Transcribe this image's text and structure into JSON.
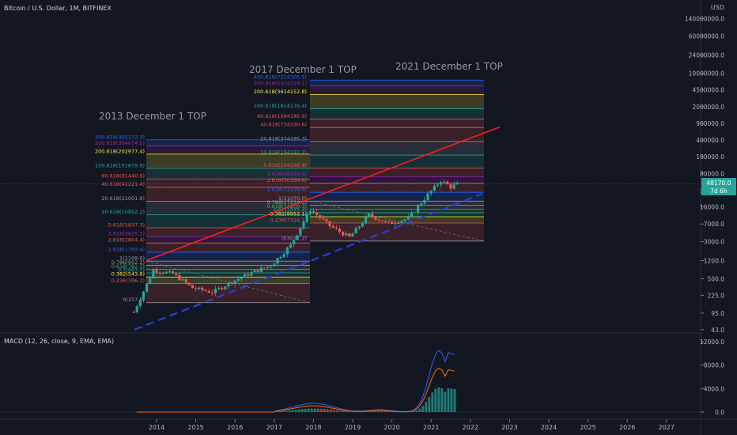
{
  "header": {
    "symbol_title": "Bitcoin / U.S. Dollar, 1M, BITFINEX"
  },
  "annotations": {
    "top_2013": "2013 December 1 TOP",
    "top_2017": "2017 December 1 TOP",
    "top_2021": "2021 December 1 TOP"
  },
  "price_scale": {
    "unit": "USD",
    "ticks": [
      "140000000.0",
      "60000000.0",
      "24000000.0",
      "10000000.0",
      "4500000.0",
      "2000000.0",
      "900000.0",
      "400000.0",
      "180000.0",
      "80000.0",
      "35000.0",
      "16000.0",
      "7000.0",
      "3000.0",
      "1200.0",
      "500.0",
      "225.0",
      "95.0",
      "43.0"
    ],
    "last_price_label": "48170.0",
    "last_price_countdown": "7d 6h"
  },
  "time_axis": {
    "labels": [
      "2014",
      "2015",
      "2016",
      "2017",
      "2018",
      "2019",
      "2020",
      "2021",
      "2022",
      "2023",
      "2024",
      "2025",
      "2026",
      "2027"
    ]
  },
  "fib_2013": {
    "levels": [
      {
        "label": "400.618(405172.3)",
        "color": "#2962ff"
      },
      {
        "label": "300.618(304074.5)",
        "color": "#9c27b0"
      },
      {
        "label": "200.618(202977.4)",
        "color": "#ffeb3b"
      },
      {
        "label": "100.618(101879.9)",
        "color": "#26a69a"
      },
      {
        "label": "60.618(61440.9)",
        "color": "#ef5350"
      },
      {
        "label": "40.618(41221.4)",
        "color": "#ef5350"
      },
      {
        "label": "20.618(21001.9)",
        "color": "#9598a1"
      },
      {
        "label": "10.618(10892.2)",
        "color": "#26a69a"
      },
      {
        "label": "5.618(5837.3)",
        "color": "#ef5350"
      },
      {
        "label": "3.618(3815.3)",
        "color": "#9c27b0"
      },
      {
        "label": "2.618(2804.4)",
        "color": "#ef5350"
      },
      {
        "label": "1.618(1793.4)",
        "color": "#2962ff"
      },
      {
        "label": "1(1168.6)",
        "color": "#9598a1"
      },
      {
        "label": "0.786(952.2)",
        "color": "#9598a1"
      },
      {
        "label": "0.618(782.3)",
        "color": "#4caf50"
      },
      {
        "label": "0.5(663.0)",
        "color": "#26a69a"
      },
      {
        "label": "0.382(543.8)",
        "color": "#ffeb3b"
      },
      {
        "label": "0.236(396.2)",
        "color": "#ef5350"
      },
      {
        "label": "0(157.6)",
        "color": "#9598a1"
      }
    ]
  },
  "fib_2017": {
    "levels": [
      {
        "label": "400.618(7214105.5)",
        "color": "#2962ff"
      },
      {
        "label": "300.618(5414129.1)",
        "color": "#9c27b0"
      },
      {
        "label": "200.618(3614152.8)",
        "color": "#ffeb3b"
      },
      {
        "label": "100.618(1814176.4)",
        "color": "#26a69a"
      },
      {
        "label": "60.618(1094185.9)",
        "color": "#ef5350"
      },
      {
        "label": "40.618(734190.6)",
        "color": "#ef5350"
      },
      {
        "label": "20.618(374195.3)",
        "color": "#9598a1"
      },
      {
        "label": "10.618(194197.7)",
        "color": "#26a69a"
      },
      {
        "label": "5.618(104198.9)",
        "color": "#ef5350"
      },
      {
        "label": "3.618(68199.4)",
        "color": "#9c27b0"
      },
      {
        "label": "2.618(50199.6)",
        "color": "#ef5350"
      },
      {
        "label": "1.618(32199.8)",
        "color": "#2962ff"
      },
      {
        "label": "1(21070.0)",
        "color": "#9598a1"
      },
      {
        "label": "0.786(17224.0)",
        "color": "#9598a1"
      },
      {
        "label": "0.618(14200.3)",
        "color": "#4caf50"
      },
      {
        "label": "0.5(12075.4)",
        "color": "#26a69a"
      },
      {
        "label": "0.382(9952.1)",
        "color": "#ffeb3b"
      },
      {
        "label": "0.236(7324.1)",
        "color": "#ef5350"
      },
      {
        "label": "0(3071.2)",
        "color": "#9598a1"
      }
    ]
  },
  "macd": {
    "title": "MACD (12, 26, close, 9, EMA, EMA)",
    "ticks": [
      "12000.0",
      "8000.0",
      "4000.0",
      "0.0"
    ]
  },
  "colors": {
    "background": "#131722",
    "up": "#26a69a",
    "down": "#ef5350",
    "trend_red": "#ff1e1e",
    "trend_blue": "#2a3fd6",
    "macd_line": "#2962ff",
    "signal_line": "#ff6d00"
  },
  "chart_data": {
    "type": "candlestick",
    "title": "Bitcoin / U.S. Dollar, 1M, BITFINEX",
    "y_scale": "log",
    "ylim": [
      43,
      140000000
    ],
    "x_range": [
      "2013-05",
      "2027-06"
    ],
    "yearly_close": [
      {
        "x": "2013-06",
        "close": 100
      },
      {
        "x": "2013-12",
        "close": 750
      },
      {
        "x": "2014-06",
        "close": 640
      },
      {
        "x": "2014-12",
        "close": 320
      },
      {
        "x": "2015-06",
        "close": 260
      },
      {
        "x": "2015-12",
        "close": 430
      },
      {
        "x": "2016-06",
        "close": 670
      },
      {
        "x": "2016-12",
        "close": 960
      },
      {
        "x": "2017-06",
        "close": 2500
      },
      {
        "x": "2017-12",
        "close": 14000
      },
      {
        "x": "2018-06",
        "close": 6400
      },
      {
        "x": "2018-12",
        "close": 3700
      },
      {
        "x": "2019-06",
        "close": 10800
      },
      {
        "x": "2019-12",
        "close": 7200
      },
      {
        "x": "2020-06",
        "close": 9100
      },
      {
        "x": "2020-12",
        "close": 29000
      },
      {
        "x": "2021-04",
        "close": 57000
      },
      {
        "x": "2021-07",
        "close": 41500
      },
      {
        "x": "2021-09",
        "close": 48170
      }
    ],
    "last_price": 48170
  }
}
